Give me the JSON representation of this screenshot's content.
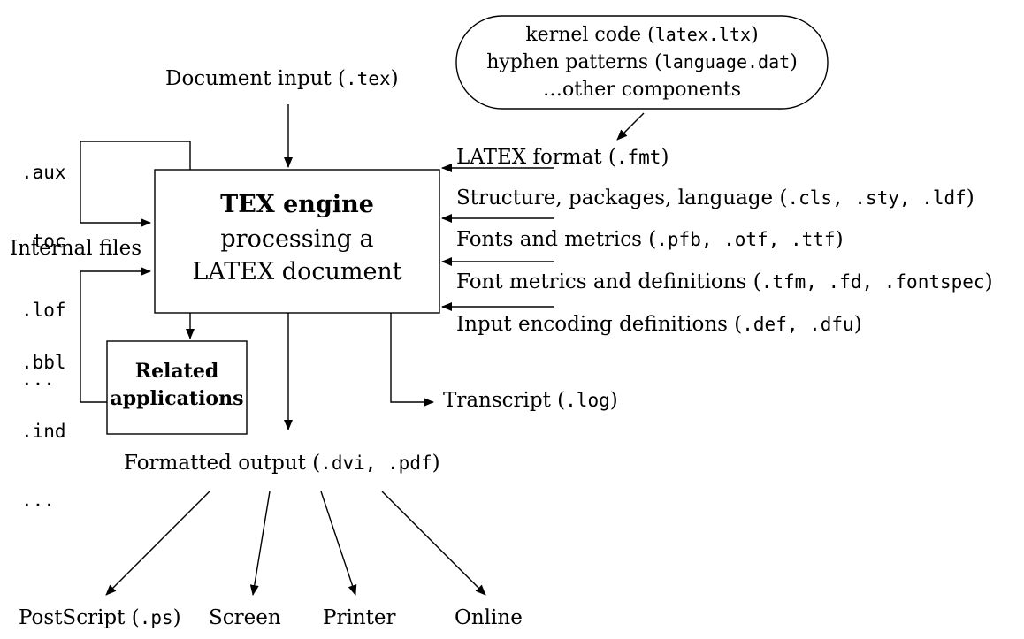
{
  "document_input": {
    "prefix": "Document input (",
    "ext": ".tex",
    "suffix": ")"
  },
  "kernel": {
    "line1_prefix": "kernel code (",
    "line1_ext": "latex.ltx",
    "line1_suffix": ")",
    "line2_prefix": "hyphen patterns (",
    "line2_ext": "language.dat",
    "line2_suffix": ")",
    "line3": "…other components"
  },
  "aux_files": [
    ".aux",
    ".toc",
    ".lof",
    "..."
  ],
  "internal_files_label": "Internal files",
  "bbl_files": [
    ".bbl",
    ".ind",
    "..."
  ],
  "engine": {
    "line1": "TEX engine",
    "line2": "processing a",
    "line3": "LATEX document"
  },
  "related": {
    "line1": "Related",
    "line2": "applications"
  },
  "inputs": [
    {
      "text": "LATEX format (",
      "exts": ".fmt",
      "suffix": ")"
    },
    {
      "text": "Structure, packages, language (",
      "exts": ".cls, .sty, .ldf",
      "suffix": ")"
    },
    {
      "text": "Fonts and metrics (",
      "exts": ".pfb, .otf, .ttf",
      "suffix": ")"
    },
    {
      "text": "Font metrics and definitions (",
      "exts": ".tfm, .fd, .fontspec",
      "suffix": ")"
    },
    {
      "text": "Input encoding definitions (",
      "exts": ".def, .dfu",
      "suffix": ")"
    }
  ],
  "transcript": {
    "prefix": "Transcript (",
    "ext": ".log",
    "suffix": ")"
  },
  "formatted_output": {
    "prefix": "Formatted output (",
    "ext": ".dvi, .pdf",
    "suffix": ")"
  },
  "outputs": [
    {
      "prefix": "PostScript (",
      "ext": ".ps",
      "suffix": ")"
    },
    {
      "prefix": "Screen",
      "ext": "",
      "suffix": ""
    },
    {
      "prefix": "Printer",
      "ext": "",
      "suffix": ""
    },
    {
      "prefix": "Online",
      "ext": "",
      "suffix": ""
    }
  ]
}
